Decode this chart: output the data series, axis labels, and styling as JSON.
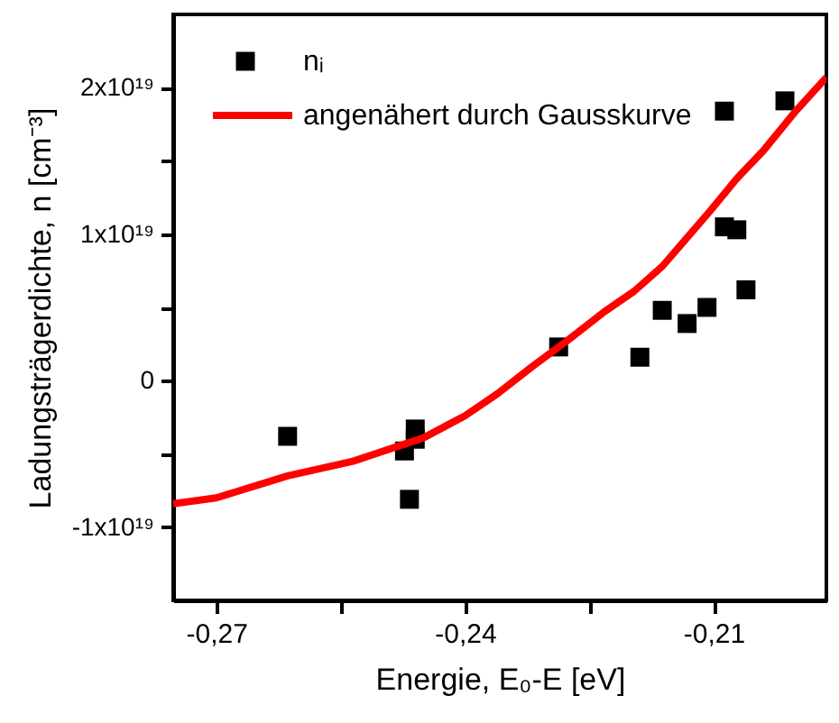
{
  "chart_data": {
    "type": "scatter",
    "xlabel": "Energie, E₀-E [eV]",
    "ylabel": "Ladungsträgerdichte, n [cm⁻³]",
    "xlim": [
      -0.2752,
      -0.1964
    ],
    "ylim": [
      -1.5e+19,
      2.5e+19
    ],
    "xticks": [
      {
        "value": -0.27,
        "label": "-0,27"
      },
      {
        "value": -0.255,
        "label": null
      },
      {
        "value": -0.24,
        "label": "-0,24"
      },
      {
        "value": -0.225,
        "label": null
      },
      {
        "value": -0.21,
        "label": "-0,21"
      }
    ],
    "yticks": [
      {
        "value": -1e+19,
        "label": "-1x10¹⁹"
      },
      {
        "value": -5e+18,
        "label": null
      },
      {
        "value": 0,
        "label": "0"
      },
      {
        "value": 5e+18,
        "label": null
      },
      {
        "value": 1e+19,
        "label": "1x10¹⁹"
      },
      {
        "value": 1.5e+19,
        "label": null
      },
      {
        "value": 2e+19,
        "label": "2x10¹⁹"
      }
    ],
    "grid": false,
    "legend": "top left",
    "series": [
      {
        "name": "nᵢ",
        "marker": "square",
        "color": "#000000",
        "x": [
          -0.2614,
          -0.2473,
          -0.246,
          -0.246,
          -0.2467,
          -0.2287,
          -0.2189,
          -0.2162,
          -0.2132,
          -0.2108,
          -0.2087,
          -0.2087,
          -0.2072,
          -0.2061,
          -0.2014
        ],
        "values": [
          -3.8e+18,
          -4.8e+18,
          -3.3e+18,
          -4e+18,
          -8.1e+18,
          2.3e+18,
          1.6e+18,
          4.8e+18,
          3.9e+18,
          5e+18,
          1.84e+19,
          1.05e+19,
          1.03e+19,
          6.2e+18,
          1.91e+19
        ]
      },
      {
        "name": "angenähert durch Gausskurve",
        "type": "line",
        "marker": "none",
        "line_style": "solid",
        "color": "#ff0000",
        "x": [
          -0.2752,
          -0.27,
          -0.2614,
          -0.2535,
          -0.245,
          -0.24,
          -0.2361,
          -0.2318,
          -0.2275,
          -0.2232,
          -0.2196,
          -0.2162,
          -0.2136,
          -0.2104,
          -0.2072,
          -0.204,
          -0.2001,
          -0.1964
        ],
        "values": [
          -8.4e+18,
          -8e+18,
          -6.5e+18,
          -5.5e+18,
          -3.9e+18,
          -2.4e+18,
          -9e+17,
          1e+18,
          2.8e+18,
          4.7e+18,
          6.1e+18,
          7.8e+18,
          9.5e+18,
          1.16e+19,
          1.38e+19,
          1.57e+19,
          1.84e+19,
          2.07e+19
        ]
      }
    ]
  }
}
